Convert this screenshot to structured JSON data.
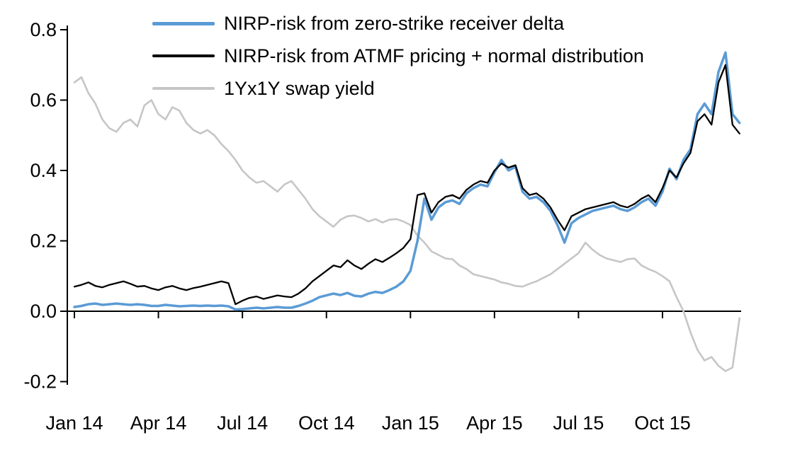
{
  "page": {
    "background": "#ffffff"
  },
  "chart_data": {
    "type": "line",
    "title": "",
    "xlabel": "",
    "ylabel": "",
    "grid": false,
    "legend_position": "top-left-inside",
    "xlim_months_from_jan_2014": [
      0,
      24
    ],
    "ylim": [
      -0.2,
      0.8
    ],
    "x_tick_positions": [
      0,
      3,
      6,
      9,
      12,
      15,
      18,
      21
    ],
    "x_tick_labels": [
      "Jan 14",
      "Apr 14",
      "Jul 14",
      "Oct 14",
      "Jan 15",
      "Apr 15",
      "Jul 15",
      "Oct 15"
    ],
    "y_ticks": [
      -0.2,
      0.0,
      0.2,
      0.4,
      0.6,
      0.8
    ],
    "y_tick_labels": [
      "-0.2",
      "0.0",
      "0.2",
      "0.4",
      "0.6",
      "0.8"
    ],
    "axis_color": "#000000",
    "series": [
      {
        "id": "zero-strike-delta",
        "name": "NIRP-risk from zero-strike receiver delta",
        "color": "#5b9bd5",
        "stroke_width": 3.5,
        "swatch_height": 5,
        "x_start": 0,
        "x_step": 0.25,
        "values": [
          0.012,
          0.015,
          0.02,
          0.022,
          0.018,
          0.02,
          0.022,
          0.02,
          0.018,
          0.02,
          0.018,
          0.015,
          0.015,
          0.018,
          0.016,
          0.014,
          0.015,
          0.016,
          0.015,
          0.016,
          0.015,
          0.016,
          0.014,
          0.005,
          0.006,
          0.008,
          0.01,
          0.008,
          0.01,
          0.012,
          0.01,
          0.01,
          0.015,
          0.022,
          0.03,
          0.04,
          0.045,
          0.05,
          0.046,
          0.052,
          0.044,
          0.042,
          0.05,
          0.055,
          0.052,
          0.06,
          0.07,
          0.085,
          0.115,
          0.2,
          0.32,
          0.26,
          0.295,
          0.31,
          0.315,
          0.305,
          0.335,
          0.35,
          0.36,
          0.355,
          0.395,
          0.43,
          0.4,
          0.41,
          0.34,
          0.32,
          0.325,
          0.31,
          0.285,
          0.245,
          0.195,
          0.25,
          0.265,
          0.275,
          0.285,
          0.29,
          0.295,
          0.3,
          0.29,
          0.285,
          0.295,
          0.31,
          0.32,
          0.3,
          0.34,
          0.405,
          0.375,
          0.43,
          0.46,
          0.56,
          0.59,
          0.56,
          0.68,
          0.735,
          0.56,
          0.535
        ]
      },
      {
        "id": "atmf-normal",
        "name": "NIRP-risk from ATMF pricing + normal distribution",
        "color": "#000000",
        "stroke_width": 2.3,
        "swatch_height": 4,
        "x_start": 0,
        "x_step": 0.25,
        "values": [
          0.07,
          0.075,
          0.082,
          0.072,
          0.068,
          0.075,
          0.08,
          0.085,
          0.078,
          0.07,
          0.072,
          0.065,
          0.06,
          0.068,
          0.072,
          0.065,
          0.06,
          0.066,
          0.07,
          0.075,
          0.08,
          0.085,
          0.08,
          0.02,
          0.03,
          0.038,
          0.042,
          0.035,
          0.04,
          0.045,
          0.042,
          0.04,
          0.05,
          0.065,
          0.085,
          0.1,
          0.115,
          0.13,
          0.125,
          0.145,
          0.13,
          0.12,
          0.135,
          0.148,
          0.14,
          0.152,
          0.165,
          0.18,
          0.205,
          0.33,
          0.335,
          0.28,
          0.31,
          0.325,
          0.33,
          0.32,
          0.345,
          0.36,
          0.37,
          0.365,
          0.4,
          0.42,
          0.408,
          0.415,
          0.35,
          0.33,
          0.335,
          0.32,
          0.295,
          0.26,
          0.23,
          0.27,
          0.28,
          0.29,
          0.295,
          0.3,
          0.305,
          0.31,
          0.3,
          0.295,
          0.305,
          0.32,
          0.33,
          0.31,
          0.35,
          0.4,
          0.38,
          0.42,
          0.45,
          0.54,
          0.56,
          0.53,
          0.65,
          0.7,
          0.53,
          0.505
        ]
      },
      {
        "id": "swap-yield",
        "name": "1Yx1Y swap yield",
        "color": "#c6c6c6",
        "stroke_width": 2.6,
        "swatch_height": 4,
        "x_start": 0,
        "x_step": 0.25,
        "values": [
          0.65,
          0.665,
          0.62,
          0.59,
          0.545,
          0.52,
          0.51,
          0.535,
          0.545,
          0.525,
          0.585,
          0.6,
          0.56,
          0.545,
          0.58,
          0.57,
          0.535,
          0.515,
          0.505,
          0.515,
          0.5,
          0.475,
          0.455,
          0.43,
          0.4,
          0.38,
          0.365,
          0.37,
          0.355,
          0.34,
          0.36,
          0.37,
          0.345,
          0.32,
          0.29,
          0.27,
          0.255,
          0.24,
          0.26,
          0.27,
          0.272,
          0.265,
          0.255,
          0.262,
          0.252,
          0.26,
          0.262,
          0.255,
          0.245,
          0.215,
          0.195,
          0.17,
          0.16,
          0.15,
          0.148,
          0.13,
          0.12,
          0.105,
          0.1,
          0.095,
          0.09,
          0.082,
          0.078,
          0.072,
          0.07,
          0.078,
          0.085,
          0.095,
          0.105,
          0.12,
          0.135,
          0.15,
          0.165,
          0.195,
          0.175,
          0.16,
          0.15,
          0.145,
          0.14,
          0.148,
          0.15,
          0.13,
          0.12,
          0.112,
          0.1,
          0.085,
          0.04,
          0.0,
          -0.06,
          -0.11,
          -0.14,
          -0.13,
          -0.155,
          -0.17,
          -0.16,
          -0.02
        ]
      }
    ]
  }
}
